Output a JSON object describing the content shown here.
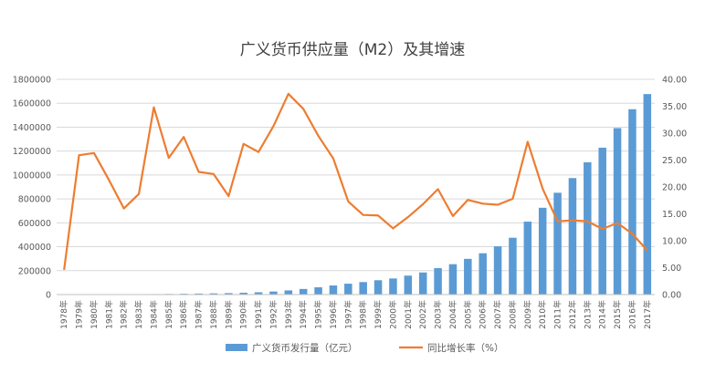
{
  "chart_data": {
    "type": "bar",
    "title": "广义货币供应量（M2）及其增速",
    "categories": [
      "1978年",
      "1979年",
      "1980年",
      "1981年",
      "1982年",
      "1983年",
      "1984年",
      "1985年",
      "1986年",
      "1987年",
      "1988年",
      "1989年",
      "1990年",
      "1991年",
      "1992年",
      "1993年",
      "1994年",
      "1995年",
      "1996年",
      "1997年",
      "1998年",
      "1999年",
      "2000年",
      "2001年",
      "2002年",
      "2003年",
      "2004年",
      "2005年",
      "2006年",
      "2007年",
      "2008年",
      "2009年",
      "2010年",
      "2011年",
      "2012年",
      "2013年",
      "2014年",
      "2015年",
      "2016年",
      "2017年"
    ],
    "series": [
      {
        "name": "广义货币发行量（亿元）",
        "type": "bar",
        "axis": "left",
        "color": "#5b9bd5",
        "values": [
          1159,
          1458,
          1843,
          2234,
          2590,
          3075,
          4146,
          5199,
          6721,
          8330,
          10100,
          11950,
          15293,
          19350,
          25402,
          34880,
          46924,
          60751,
          76095,
          90995,
          104499,
          119898,
          134610,
          158302,
          185007,
          221223,
          254107,
          298756,
          345604,
          403442,
          475167,
          610225,
          725852,
          851591,
          974149,
          1106525,
          1228375,
          1392278,
          1550067,
          1676769
        ]
      },
      {
        "name": "同比增长率（%）",
        "type": "line",
        "axis": "right",
        "color": "#ed7d31",
        "values": [
          4.6,
          25.9,
          26.3,
          21.3,
          16.0,
          18.7,
          34.8,
          25.4,
          29.3,
          22.8,
          22.4,
          18.3,
          28.0,
          26.5,
          31.3,
          37.3,
          34.5,
          29.5,
          25.3,
          17.3,
          14.8,
          14.7,
          12.3,
          14.4,
          16.8,
          19.6,
          14.6,
          17.6,
          16.9,
          16.7,
          17.8,
          28.4,
          19.7,
          13.6,
          13.8,
          13.6,
          12.2,
          13.3,
          11.3,
          8.2
        ]
      }
    ],
    "y_left": {
      "min": 0,
      "max": 1800000,
      "step": 200000,
      "ticks": [
        "0",
        "200000",
        "400000",
        "600000",
        "800000",
        "1000000",
        "1200000",
        "1400000",
        "1600000",
        "1800000"
      ]
    },
    "y_right": {
      "min": 0,
      "max": 40,
      "step": 5,
      "ticks": [
        "0.00",
        "5.00",
        "10.00",
        "15.00",
        "20.00",
        "25.00",
        "30.00",
        "35.00",
        "40.00"
      ]
    },
    "grid": true,
    "legend_position": "bottom"
  }
}
